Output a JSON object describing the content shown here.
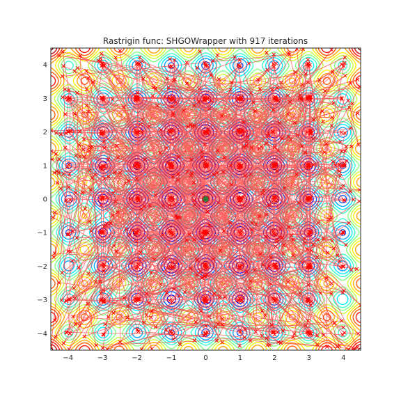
{
  "chart_data": {
    "type": "contour",
    "title": "Rastrigin func: SHGOWrapper with 917 iterations",
    "function": "rastrigin",
    "xlabel": "",
    "ylabel": "",
    "xlim": [
      -4.5,
      4.5
    ],
    "ylim": [
      -4.5,
      4.5
    ],
    "xticks": [
      "−4",
      "−3",
      "−2",
      "−1",
      "0",
      "1",
      "2",
      "3",
      "4"
    ],
    "yticks": [
      "4",
      "3",
      "2",
      "1",
      "0",
      "−1",
      "−2",
      "−3",
      "−4"
    ],
    "grid": false,
    "colormap": "jet",
    "iterations": 917,
    "best_point": [
      0,
      0
    ],
    "colors": {
      "path": "#ff3030",
      "marker": "#ff0000",
      "best": "#2e7d32",
      "frame": "#262626"
    }
  }
}
